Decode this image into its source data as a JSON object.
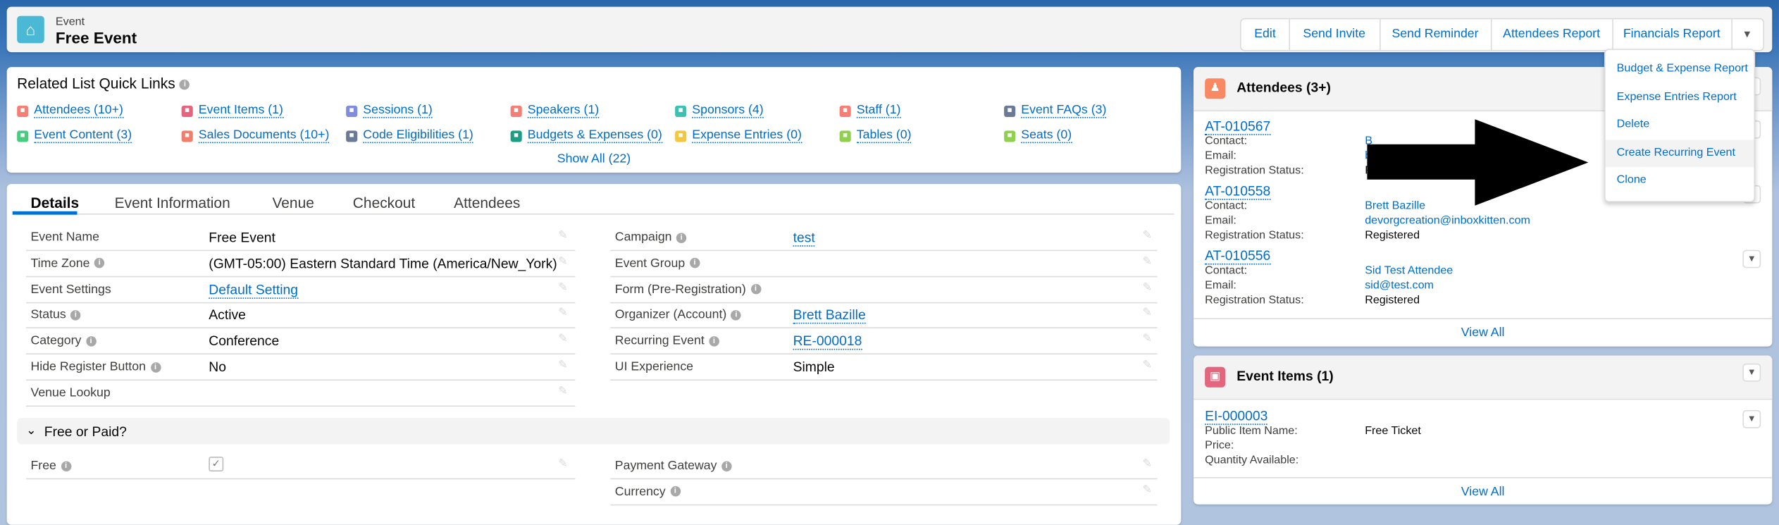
{
  "header": {
    "object_type": "Event",
    "title": "Free Event",
    "icon": "event-icon",
    "icon_color": "#4bb8d6",
    "actions": [
      "Edit",
      "Send Invite",
      "Send Reminder",
      "Attendees Report",
      "Financials Report"
    ],
    "more_menu": {
      "items": [
        "Budget & Expense Report",
        "Expense Entries Report",
        "Delete",
        "Create Recurring Event",
        "Clone"
      ],
      "highlighted": "Create Recurring Event"
    }
  },
  "quick_links": {
    "title": "Related List Quick Links",
    "rows": [
      [
        {
          "label": "Attendees (10+)",
          "color": "#f77e75"
        },
        {
          "label": "Event Items (1)",
          "color": "#e3657e"
        },
        {
          "label": "Sessions (1)",
          "color": "#7f8de1"
        },
        {
          "label": "Speakers (1)",
          "color": "#f77e75"
        },
        {
          "label": "Sponsors (4)",
          "color": "#3cc2b3"
        },
        {
          "label": "Staff (1)",
          "color": "#f77e75"
        },
        {
          "label": "Event FAQs (3)",
          "color": "#6b7a96"
        }
      ],
      [
        {
          "label": "Event Content (3)",
          "color": "#4bca81"
        },
        {
          "label": "Sales Documents (10+)",
          "color": "#ef7e6b"
        },
        {
          "label": "Code Eligibilities (1)",
          "color": "#6b7a96"
        },
        {
          "label": "Budgets & Expenses (0)",
          "color": "#1b9e83"
        },
        {
          "label": "Expense Entries (0)",
          "color": "#f4c742"
        },
        {
          "label": "Tables (0)",
          "color": "#8fd14f"
        },
        {
          "label": "Seats (0)",
          "color": "#8fd14f"
        }
      ]
    ],
    "show_all": "Show All (22)"
  },
  "details": {
    "tabs": [
      "Details",
      "Event Information",
      "Venue",
      "Checkout",
      "Attendees"
    ],
    "active_tab": "Details",
    "left_fields": [
      {
        "label": "Event Name",
        "info": false,
        "value": "Free Event",
        "link": false
      },
      {
        "label": "Time Zone",
        "info": true,
        "value": "(GMT-05:00) Eastern Standard Time (America/New_York)",
        "link": false
      },
      {
        "label": "Event Settings",
        "info": false,
        "value": "Default Setting",
        "link": true
      },
      {
        "label": "Status",
        "info": true,
        "value": "Active",
        "link": false
      },
      {
        "label": "Category",
        "info": true,
        "value": "Conference",
        "link": false
      },
      {
        "label": "Hide Register Button",
        "info": true,
        "value": "No",
        "link": false
      },
      {
        "label": "Venue Lookup",
        "info": false,
        "value": "",
        "link": false
      }
    ],
    "right_fields": [
      {
        "label": "Campaign",
        "info": true,
        "value": "test",
        "link": true
      },
      {
        "label": "Event Group",
        "info": true,
        "value": "",
        "link": false
      },
      {
        "label": "Form (Pre-Registration)",
        "info": true,
        "value": "",
        "link": false
      },
      {
        "label": "Organizer (Account)",
        "info": true,
        "value": "Brett Bazille",
        "link": true
      },
      {
        "label": "Recurring Event",
        "info": true,
        "value": "RE-000018",
        "link": true
      },
      {
        "label": "UI Experience",
        "info": false,
        "value": "Simple",
        "link": false
      }
    ],
    "section": {
      "title": "Free or Paid?",
      "left_fields": [
        {
          "label": "Free",
          "info": true,
          "checked": true
        }
      ],
      "right_fields": [
        {
          "label": "Payment Gateway",
          "info": true
        },
        {
          "label": "Currency",
          "info": true
        }
      ]
    }
  },
  "attendees": {
    "title": "Attendees (3+)",
    "icon_color": "#f88962",
    "records": [
      {
        "id": "AT-010567",
        "fields": [
          [
            "Contact:",
            "B",
            true
          ],
          [
            "Email:",
            "b",
            true
          ],
          [
            "Registration Status:",
            "Registered",
            false
          ]
        ]
      },
      {
        "id": "AT-010558",
        "fields": [
          [
            "Contact:",
            "Brett Bazille",
            true
          ],
          [
            "Email:",
            "devorgcreation@inboxkitten.com",
            true
          ],
          [
            "Registration Status:",
            "Registered",
            false
          ]
        ]
      },
      {
        "id": "AT-010556",
        "fields": [
          [
            "Contact:",
            "Sid Test Attendee",
            true
          ],
          [
            "Email:",
            "sid@test.com",
            true
          ],
          [
            "Registration Status:",
            "Registered",
            false
          ]
        ]
      }
    ],
    "view_all": "View All"
  },
  "event_items": {
    "title": "Event Items (1)",
    "icon_color": "#e3657e",
    "records": [
      {
        "id": "EI-000003",
        "fields": [
          [
            "Public Item Name:",
            "Free Ticket",
            false
          ],
          [
            "Price:",
            "",
            false
          ],
          [
            "Quantity Available:",
            "",
            false
          ]
        ]
      }
    ],
    "view_all": "View All"
  },
  "annotation": {
    "arrow_color": "#000000"
  }
}
